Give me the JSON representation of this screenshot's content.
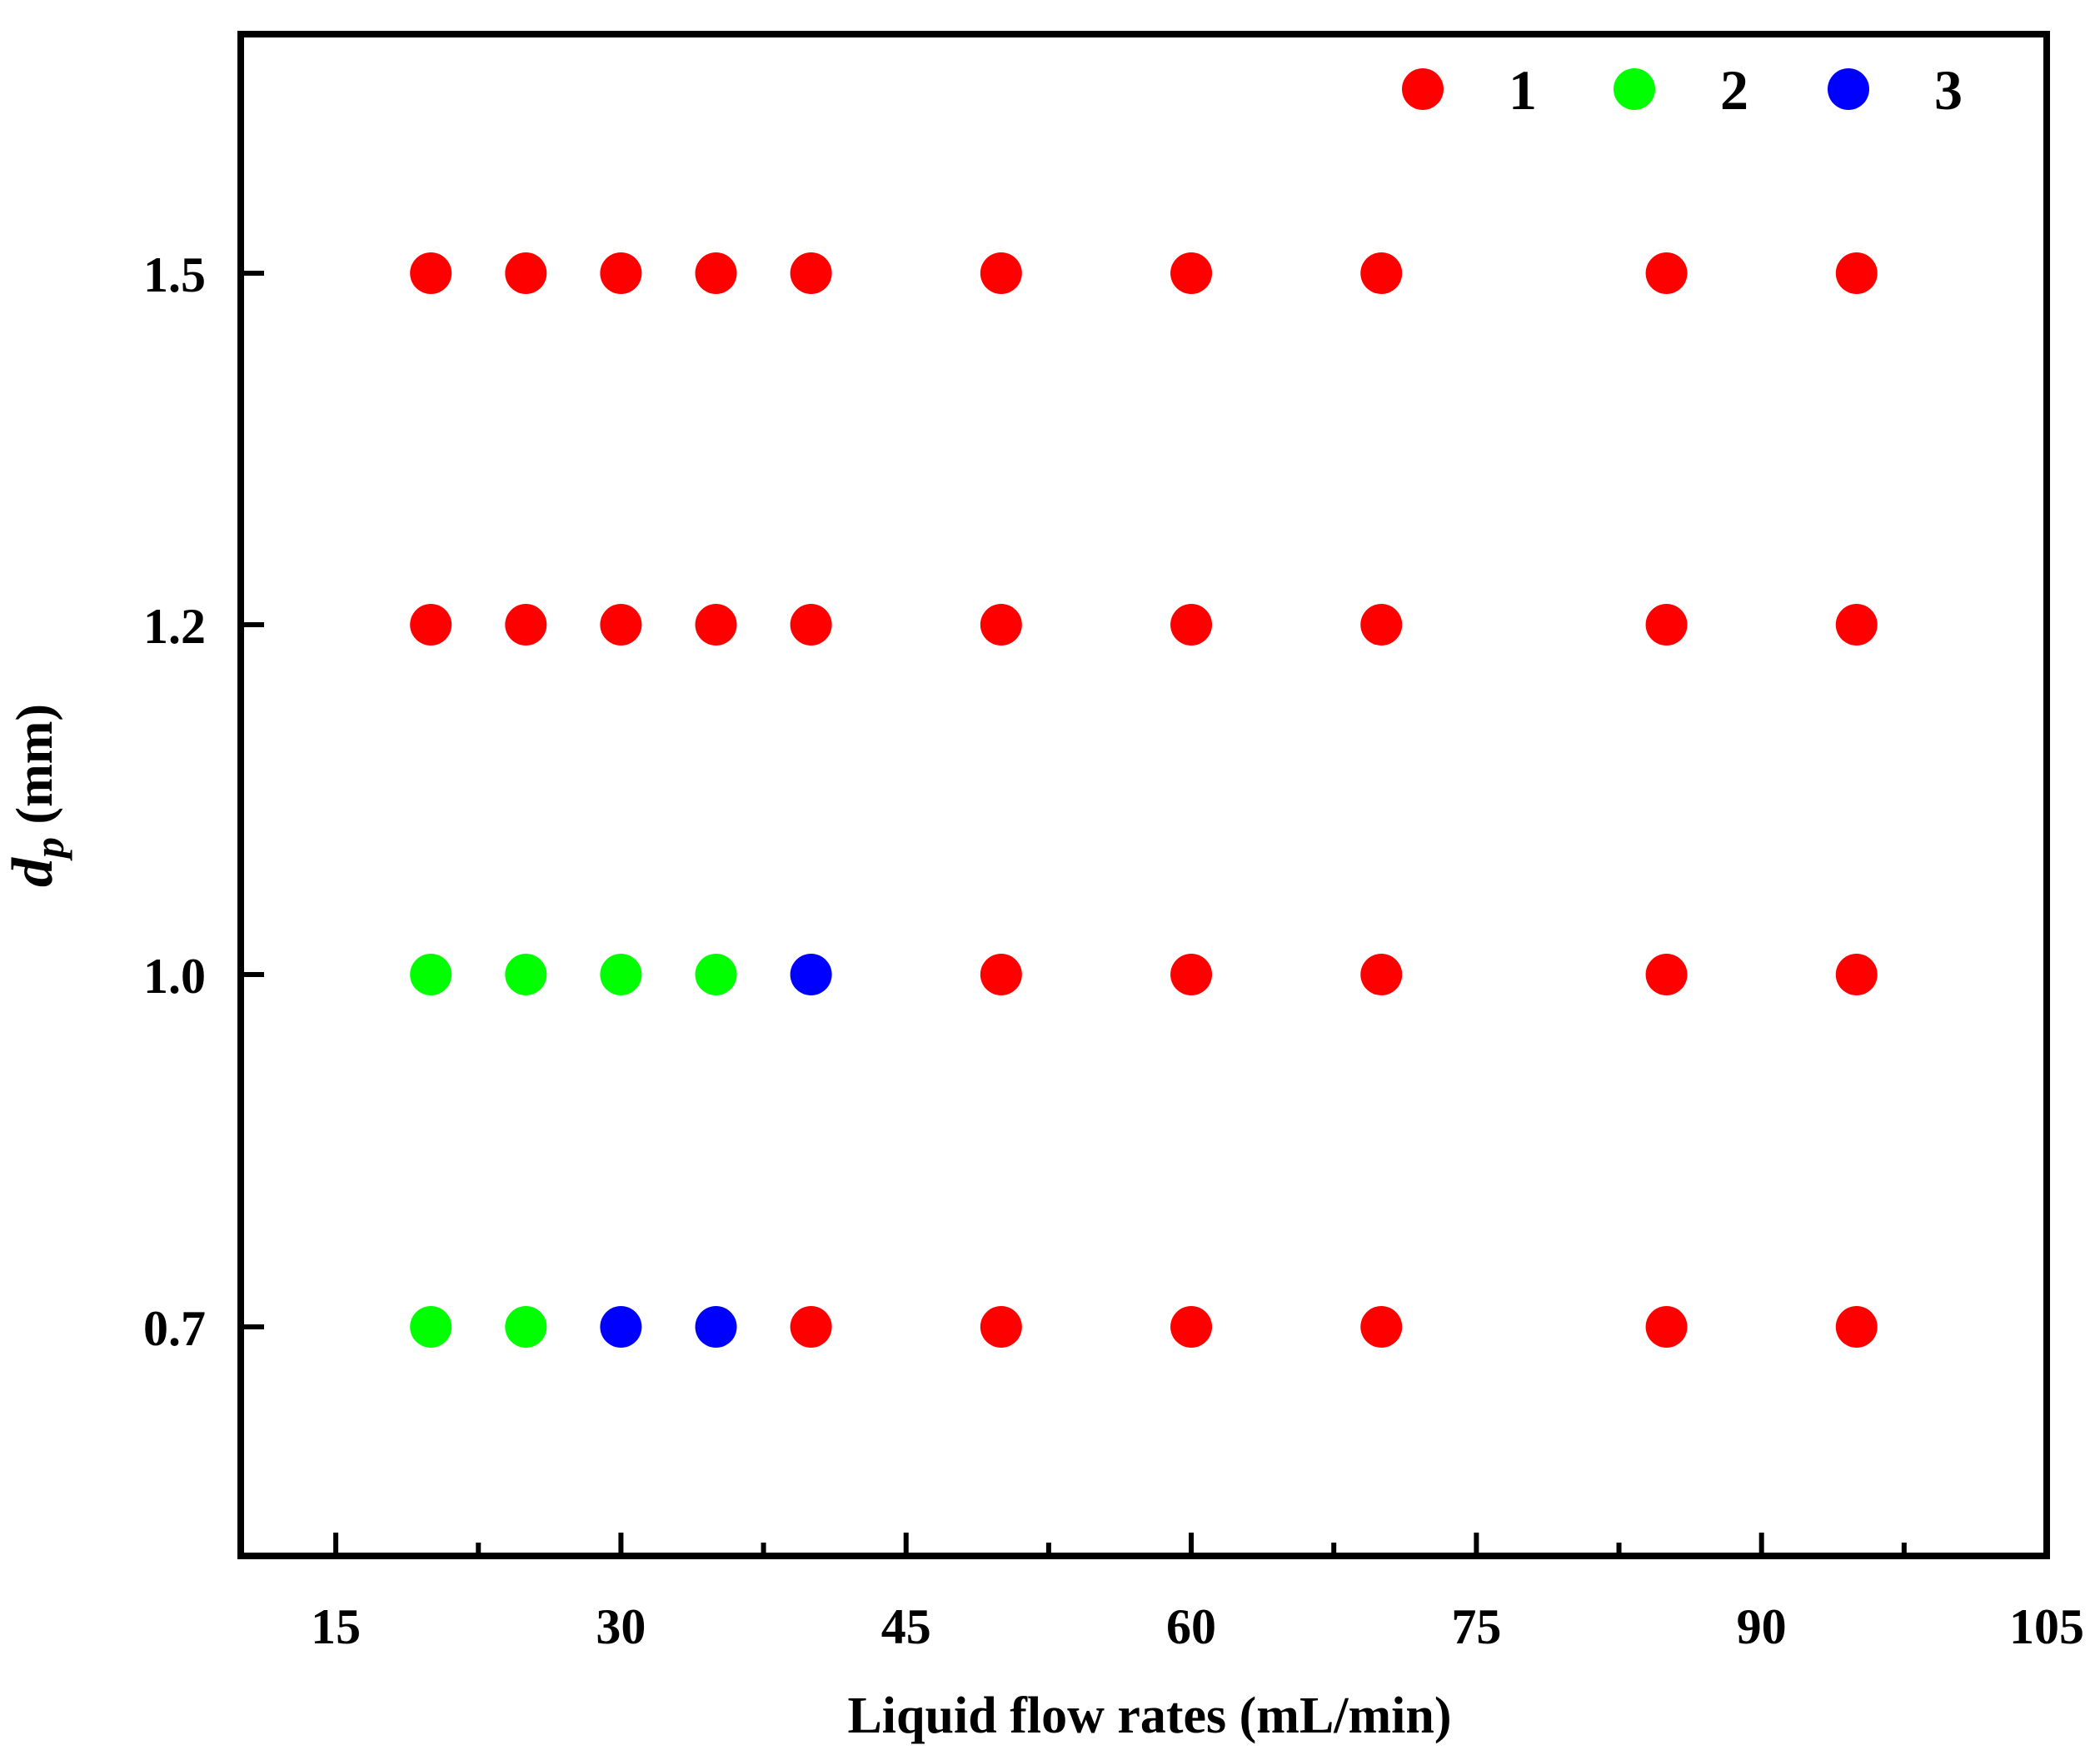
{
  "chart_data": {
    "type": "scatter",
    "title": "",
    "xlabel": "Liquid flow rates (mL/min)",
    "ylabel": {
      "main": "d",
      "subscript": "p",
      "unit": " (mm)"
    },
    "xlim": [
      10,
      105
    ],
    "x_ticks": [
      15,
      30,
      45,
      60,
      75,
      90,
      105
    ],
    "x_tick_labels": [
      "15",
      "30",
      "45",
      "60",
      "75",
      "90",
      "105"
    ],
    "y_categories": [
      "0.7",
      "1.0",
      "1.2",
      "1.5"
    ],
    "grid": false,
    "legend": {
      "position": "top-right",
      "orientation": "horizontal"
    },
    "series": [
      {
        "name": "1",
        "color": "#ff0000",
        "points": [
          {
            "x": 20,
            "y": "1.5"
          },
          {
            "x": 25,
            "y": "1.5"
          },
          {
            "x": 30,
            "y": "1.5"
          },
          {
            "x": 35,
            "y": "1.5"
          },
          {
            "x": 40,
            "y": "1.5"
          },
          {
            "x": 50,
            "y": "1.5"
          },
          {
            "x": 60,
            "y": "1.5"
          },
          {
            "x": 70,
            "y": "1.5"
          },
          {
            "x": 85,
            "y": "1.5"
          },
          {
            "x": 95,
            "y": "1.5"
          },
          {
            "x": 20,
            "y": "1.2"
          },
          {
            "x": 25,
            "y": "1.2"
          },
          {
            "x": 30,
            "y": "1.2"
          },
          {
            "x": 35,
            "y": "1.2"
          },
          {
            "x": 40,
            "y": "1.2"
          },
          {
            "x": 50,
            "y": "1.2"
          },
          {
            "x": 60,
            "y": "1.2"
          },
          {
            "x": 70,
            "y": "1.2"
          },
          {
            "x": 85,
            "y": "1.2"
          },
          {
            "x": 95,
            "y": "1.2"
          },
          {
            "x": 50,
            "y": "1.0"
          },
          {
            "x": 60,
            "y": "1.0"
          },
          {
            "x": 70,
            "y": "1.0"
          },
          {
            "x": 85,
            "y": "1.0"
          },
          {
            "x": 95,
            "y": "1.0"
          },
          {
            "x": 40,
            "y": "0.7"
          },
          {
            "x": 50,
            "y": "0.7"
          },
          {
            "x": 60,
            "y": "0.7"
          },
          {
            "x": 70,
            "y": "0.7"
          },
          {
            "x": 85,
            "y": "0.7"
          },
          {
            "x": 95,
            "y": "0.7"
          }
        ]
      },
      {
        "name": "2",
        "color": "#00ff00",
        "points": [
          {
            "x": 20,
            "y": "1.0"
          },
          {
            "x": 25,
            "y": "1.0"
          },
          {
            "x": 30,
            "y": "1.0"
          },
          {
            "x": 35,
            "y": "1.0"
          },
          {
            "x": 20,
            "y": "0.7"
          },
          {
            "x": 25,
            "y": "0.7"
          }
        ]
      },
      {
        "name": "3",
        "color": "#0000ff",
        "points": [
          {
            "x": 40,
            "y": "1.0"
          },
          {
            "x": 30,
            "y": "0.7"
          },
          {
            "x": 35,
            "y": "0.7"
          }
        ]
      }
    ]
  }
}
